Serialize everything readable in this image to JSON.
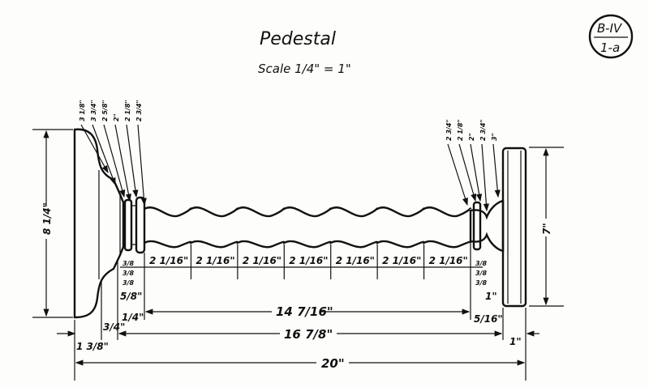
{
  "title": "Pedestal",
  "scale": "Scale 1/4\" = 1\"",
  "badge": {
    "top": "B-IV",
    "bottom": "1-a"
  },
  "dimensions": {
    "base_height": "8 1/4\"",
    "foot_height": "7\"",
    "overall_length": "20\"",
    "inner_length": "16 7/8\"",
    "spindle_length": "14 7/16\"",
    "base_thickness": "1 3/8\"",
    "base_step": "3/4\"",
    "foot_thickness": "1\"",
    "left_collar": "1/4\"",
    "right_collar": "5/16\"",
    "left_small": "5/8\"",
    "right_small": "1\"",
    "segments": [
      "2 1/16\"",
      "2 1/16\"",
      "2 1/16\"",
      "2 1/16\"",
      "2 1/16\"",
      "2 1/16\"",
      "2 1/16\""
    ],
    "left_rings": [
      "3/8",
      "3/8",
      "3/8"
    ],
    "right_rings": [
      "3/8",
      "3/8",
      "3/8"
    ],
    "left_diameters": [
      "3 1/8\"",
      "3 3/4\"",
      "2 5/8\"",
      "2\"",
      "2 1/8\"",
      "2 3/4\""
    ],
    "right_diameters": [
      "2 3/4\"",
      "2 1/8\"",
      "2\"",
      "2 3/4\"",
      "3\""
    ]
  }
}
